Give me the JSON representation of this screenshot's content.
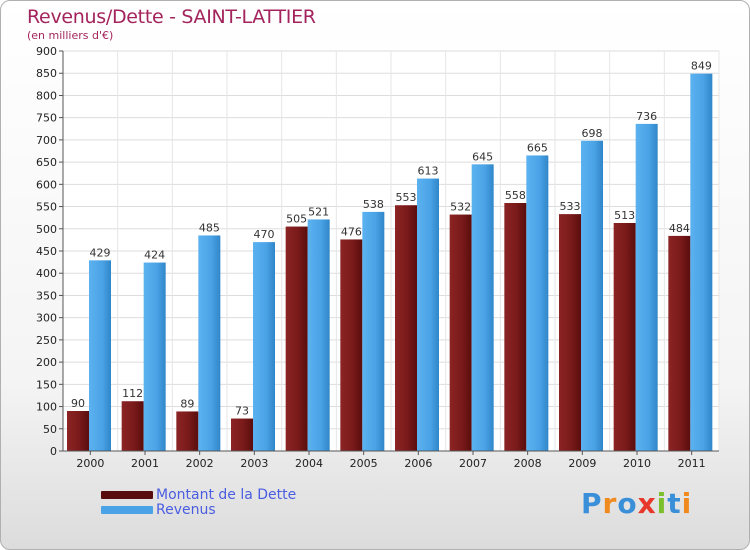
{
  "header": {
    "title": "Revenus/Dette - SAINT-LATTIER",
    "subtitle": "(en milliers d'€)"
  },
  "chart_data": {
    "type": "bar",
    "categories": [
      "2000",
      "2001",
      "2002",
      "2003",
      "2004",
      "2005",
      "2006",
      "2007",
      "2008",
      "2009",
      "2010",
      "2011"
    ],
    "series": [
      {
        "name": "Montant de la Dette",
        "values": [
          90,
          112,
          89,
          73,
          505,
          476,
          553,
          532,
          558,
          533,
          513,
          484
        ],
        "color": "#7a1a1a"
      },
      {
        "name": "Revenus",
        "values": [
          429,
          424,
          485,
          470,
          521,
          538,
          613,
          645,
          665,
          698,
          736,
          849
        ],
        "color": "#4aa3e6"
      }
    ],
    "ylim": [
      0,
      900
    ],
    "ytick_step": 50,
    "grid": true,
    "legend": "bottom-left"
  },
  "logo": {
    "text": "Proxiti",
    "colors": [
      "#3a8fd9",
      "#f08a1e",
      "#3a8fd9",
      "#e8382c",
      "#7bbf2a",
      "#3a8fd9",
      "#f08a1e"
    ]
  }
}
